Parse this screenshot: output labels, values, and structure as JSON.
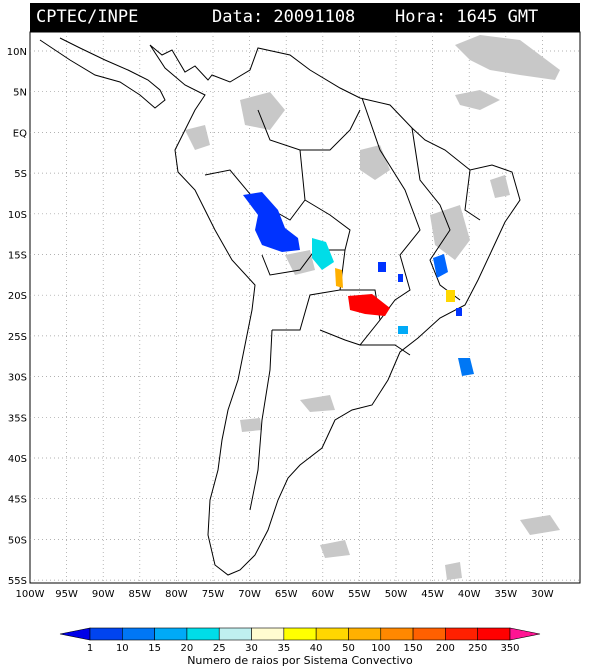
{
  "header": {
    "agency": "CPTEC/INPE",
    "date_text": "Data: 20091108",
    "time_text": "Hora: 1645 GMT"
  },
  "lat_labels": [
    "10N",
    "5N",
    "EQ",
    "5S",
    "10S",
    "15S",
    "20S",
    "25S",
    "30S",
    "35S",
    "40S",
    "45S",
    "50S",
    "55S"
  ],
  "lon_labels": [
    "100W",
    "95W",
    "90W",
    "85W",
    "80W",
    "75W",
    "70W",
    "65W",
    "60W",
    "55W",
    "50W",
    "45W",
    "40W",
    "35W",
    "30W"
  ],
  "colorbar": {
    "labels": [
      "1",
      "10",
      "15",
      "20",
      "25",
      "30",
      "35",
      "40",
      "50",
      "100",
      "150",
      "200",
      "250",
      "350"
    ],
    "colors": [
      "#0000e8",
      "#0044f0",
      "#0077f5",
      "#00aaf7",
      "#00dde8",
      "#bff0f0",
      "#fffcd0",
      "#ffff00",
      "#ffd700",
      "#ffb000",
      "#ff8800",
      "#ff6000",
      "#ff2000",
      "#ff0000",
      "#ff1493"
    ],
    "title": "Numero de raios por Sistema Convectivo"
  }
}
